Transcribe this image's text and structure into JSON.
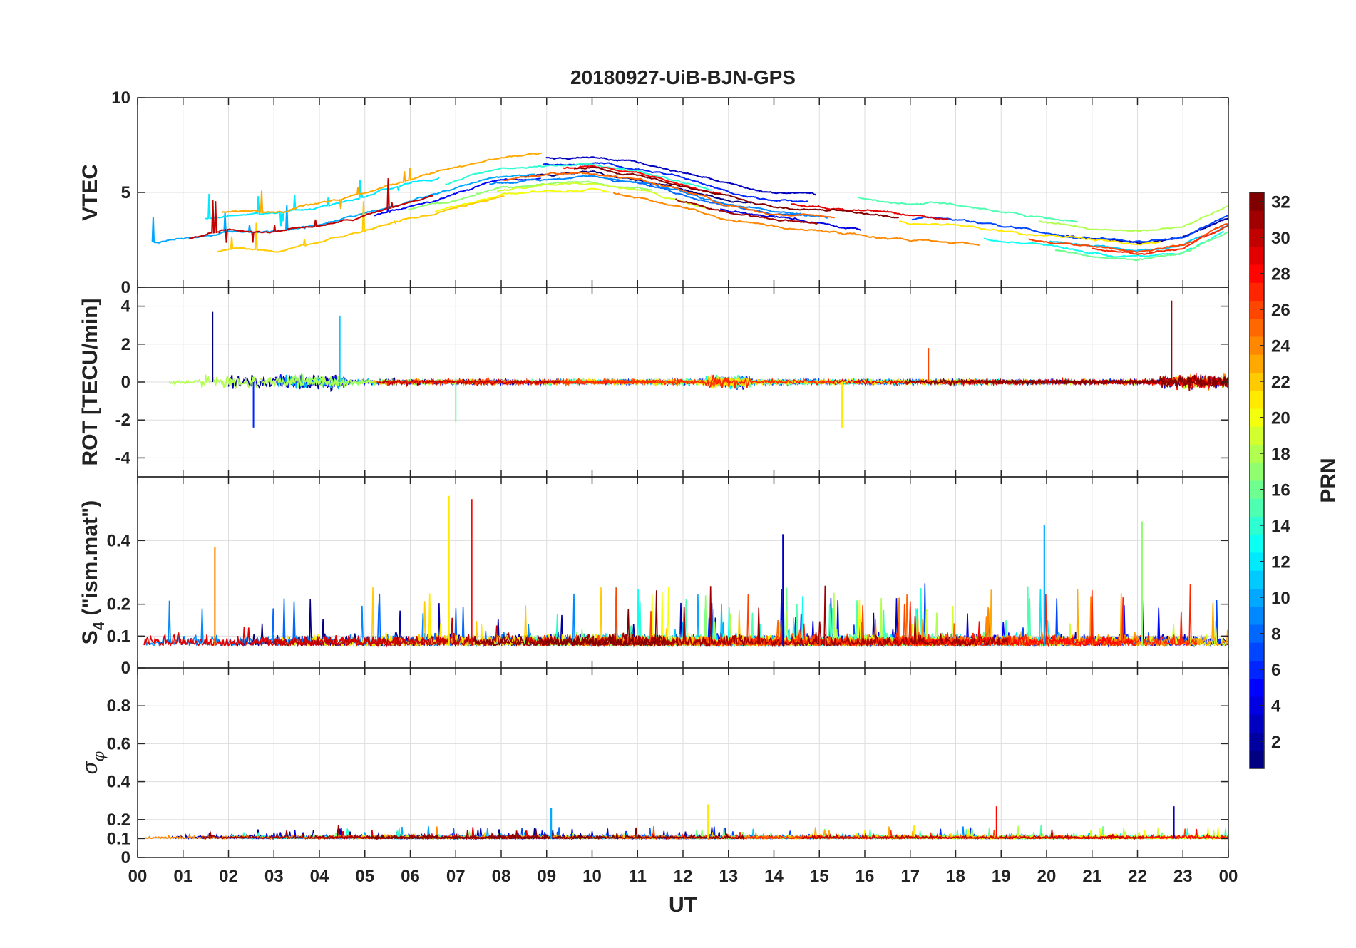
{
  "chart_data": {
    "type": "line",
    "title": "20180927-UiB-BJN-GPS",
    "xlabel": "UT",
    "x_ticks": [
      "00",
      "01",
      "02",
      "03",
      "04",
      "05",
      "06",
      "07",
      "08",
      "09",
      "10",
      "11",
      "12",
      "13",
      "14",
      "15",
      "16",
      "17",
      "18",
      "19",
      "20",
      "21",
      "22",
      "23",
      "00"
    ],
    "xlim": [
      0,
      24
    ],
    "series_note": "GPS satellites colored by PRN (1–32)",
    "panels": [
      {
        "id": "vtec",
        "ylabel": "VTEC",
        "ylim": [
          0,
          10
        ],
        "y_ticks": [
          {
            "value": 0,
            "label": "0"
          },
          {
            "value": 5,
            "label": "5"
          },
          {
            "value": 10,
            "label": "10"
          }
        ],
        "representative_envelope": {
          "x": [
            0,
            1,
            2,
            3,
            4,
            5,
            6,
            7,
            8,
            9,
            10,
            11,
            12,
            13,
            14,
            15,
            16,
            17,
            18,
            19,
            20,
            21,
            22,
            23,
            24
          ],
          "y": [
            2.3,
            2.6,
            3.0,
            3.0,
            3.4,
            3.9,
            4.6,
            5.2,
            5.8,
            6.0,
            6.1,
            5.8,
            5.2,
            4.6,
            4.2,
            4.0,
            3.7,
            3.4,
            3.3,
            3.0,
            2.7,
            2.4,
            2.2,
            2.5,
            3.6
          ]
        }
      },
      {
        "id": "rot",
        "ylabel": "ROT [TECU/min]",
        "ylim": [
          -5,
          5
        ],
        "y_ticks": [
          {
            "value": -4,
            "label": "-4"
          },
          {
            "value": -2,
            "label": "-2"
          },
          {
            "value": 0,
            "label": "0"
          },
          {
            "value": 2,
            "label": "2"
          },
          {
            "value": 4,
            "label": "4"
          }
        ],
        "notable_spikes": [
          {
            "x": 1.65,
            "y": 3.7
          },
          {
            "x": 2.55,
            "y": -2.4
          },
          {
            "x": 4.45,
            "y": 3.5
          },
          {
            "x": 7.0,
            "y": -2.1
          },
          {
            "x": 15.5,
            "y": -2.4
          },
          {
            "x": 17.4,
            "y": 1.8
          },
          {
            "x": 22.75,
            "y": 4.3
          }
        ]
      },
      {
        "id": "s4",
        "ylabel": "S4 (\"ism.mat\")",
        "ylabel_main": "S",
        "ylabel_sub": "4",
        "ylabel_rest": " (\"ism.mat\")",
        "ylim": [
          0,
          0.6
        ],
        "y_ticks": [
          {
            "value": 0,
            "label": "0"
          },
          {
            "value": 0.1,
            "label": "0.1"
          },
          {
            "value": 0.2,
            "label": "0.2"
          },
          {
            "value": 0.4,
            "label": "0.4"
          }
        ],
        "notable_peaks": [
          {
            "x": 6.85,
            "y": 0.54
          },
          {
            "x": 7.35,
            "y": 0.53
          },
          {
            "x": 14.2,
            "y": 0.42
          },
          {
            "x": 19.95,
            "y": 0.45
          },
          {
            "x": 22.1,
            "y": 0.46
          },
          {
            "x": 1.7,
            "y": 0.38
          }
        ]
      },
      {
        "id": "sigma_phi",
        "ylabel": "σ φ",
        "ylabel_main": "σ",
        "ylabel_sub": "φ",
        "ylim": [
          0,
          1
        ],
        "y_ticks": [
          {
            "value": 0,
            "label": "0"
          },
          {
            "value": 0.1,
            "label": "0.1"
          },
          {
            "value": 0.2,
            "label": "0.2"
          },
          {
            "value": 0.4,
            "label": "0.4"
          },
          {
            "value": 0.6,
            "label": "0.6"
          },
          {
            "value": 0.8,
            "label": "0.8"
          }
        ],
        "notable_peaks": [
          {
            "x": 12.55,
            "y": 0.28
          },
          {
            "x": 18.9,
            "y": 0.27
          },
          {
            "x": 22.8,
            "y": 0.27
          },
          {
            "x": 9.1,
            "y": 0.26
          }
        ]
      }
    ],
    "colorbar": {
      "label": "PRN",
      "range": [
        1,
        32
      ],
      "ticks": [
        "2",
        "4",
        "6",
        "8",
        "10",
        "12",
        "14",
        "16",
        "18",
        "20",
        "22",
        "24",
        "26",
        "28",
        "30",
        "32"
      ],
      "colormap": "jet"
    }
  }
}
